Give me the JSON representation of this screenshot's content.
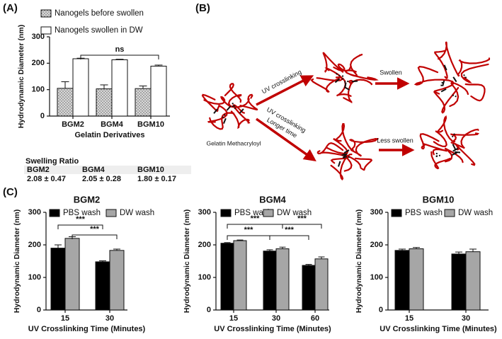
{
  "panel_labels": [
    "(A)",
    "(B)",
    "(C)"
  ],
  "chart_data": [
    {
      "type": "bar",
      "y_label": "Hydrodynamic Diameter (nm)",
      "x_label": "Gelatin Derivatives",
      "categories": [
        "BGM2",
        "BGM4",
        "BGM10"
      ],
      "series": [
        {
          "name": "Nanogels before swollen",
          "color": "#d9d9d9",
          "pattern": "dots",
          "values": [
            105,
            103,
            104
          ],
          "errors": [
            25,
            15,
            10
          ]
        },
        {
          "name": "Nanogels swollen in DW",
          "color": "#ffffff",
          "values": [
            217,
            213,
            189
          ],
          "errors": [
            2,
            2,
            4
          ]
        }
      ],
      "ylim": [
        0,
        300
      ],
      "yticks": [
        0,
        100,
        200,
        300
      ],
      "annotations": [
        {
          "text": "ns"
        }
      ]
    },
    {
      "type": "bar",
      "title": "BGM2",
      "y_label": "Hydrodynamic Diameter (nm)",
      "x_label": "UV Crosslinking Time (Minutes)",
      "categories": [
        "15",
        "30"
      ],
      "series": [
        {
          "name": "PBS wash",
          "color": "#000000",
          "values": [
            190,
            148
          ],
          "errors": [
            10,
            3
          ]
        },
        {
          "name": "DW wash",
          "color": "#a6a6a6",
          "values": [
            220,
            183
          ],
          "errors": [
            5,
            4
          ]
        }
      ],
      "ylim": [
        0,
        300
      ],
      "yticks": [
        0,
        100,
        200,
        300
      ],
      "annotations": [
        {
          "text": "***"
        },
        {
          "text": "***"
        }
      ]
    },
    {
      "type": "bar",
      "title": "BGM4",
      "y_label": "Hydrodynamic Diameter (nm)",
      "x_label": "UV Crosslinking Time (Minutes)",
      "categories": [
        "15",
        "30",
        "60"
      ],
      "series": [
        {
          "name": "PBS wash",
          "color": "#000000",
          "values": [
            205,
            181,
            137
          ],
          "errors": [
            2,
            4,
            3
          ]
        },
        {
          "name": "DW wash",
          "color": "#a6a6a6",
          "values": [
            213,
            188,
            157
          ],
          "errors": [
            2,
            5,
            6
          ]
        }
      ],
      "ylim": [
        0,
        300
      ],
      "yticks": [
        0,
        100,
        200,
        300
      ],
      "annotations": [
        {
          "text": "***"
        },
        {
          "text": "***"
        },
        {
          "text": "***"
        },
        {
          "text": "***"
        }
      ]
    },
    {
      "type": "bar",
      "title": "BGM10",
      "y_label": "Hydrodynamic Diameter (nm)",
      "x_label": "UV Crosslinking Time (Minutes)",
      "categories": [
        "15",
        "30"
      ],
      "series": [
        {
          "name": "PBS wash",
          "color": "#000000",
          "values": [
            183,
            172
          ],
          "errors": [
            4,
            6
          ]
        },
        {
          "name": "DW wash",
          "color": "#a6a6a6",
          "values": [
            188,
            179
          ],
          "errors": [
            4,
            8
          ]
        }
      ],
      "ylim": [
        0,
        300
      ],
      "yticks": [
        0,
        100,
        200,
        300
      ]
    }
  ],
  "swelling_table": {
    "title": "Swelling Ratio",
    "header": [
      "BGM2",
      "BGM4",
      "BGM10"
    ],
    "values": [
      "2.08 ± 0.47",
      "2.05 ± 0.28",
      "1.80 ± 0.17"
    ]
  },
  "diagram": {
    "start": "Gelatin Methacryloyl",
    "uv": "UV crosslinking",
    "uv_long": [
      "UV crosslinking",
      "Longer time"
    ],
    "swollen": "Swollen",
    "less_swollen": "Less swollen"
  }
}
